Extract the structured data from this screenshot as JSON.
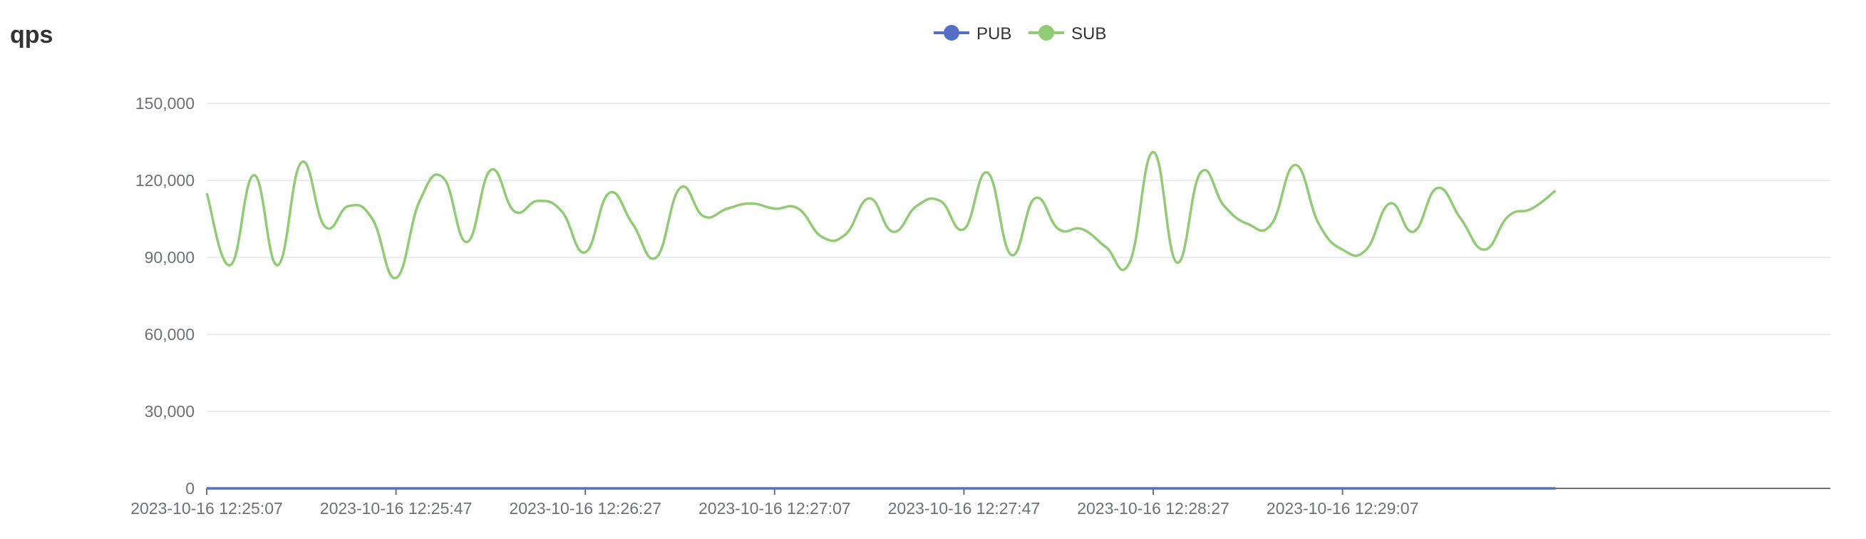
{
  "chart_data": {
    "type": "line",
    "title": "qps",
    "xlabel": "",
    "ylabel": "",
    "ylim": [
      0,
      150000
    ],
    "y_ticks": [
      0,
      30000,
      60000,
      90000,
      120000,
      150000
    ],
    "y_tick_labels": [
      "0",
      "30,000",
      "60,000",
      "90,000",
      "120,000",
      "150,000"
    ],
    "x_tick_labels": [
      "2023-10-16 12:25:07",
      "2023-10-16 12:25:47",
      "2023-10-16 12:26:27",
      "2023-10-16 12:27:07",
      "2023-10-16 12:27:47",
      "2023-10-16 12:28:27",
      "2023-10-16 12:29:07"
    ],
    "grid": true,
    "legend": "top-center",
    "smooth": true,
    "x": [
      "2023-10-16 12:25:07",
      "2023-10-16 12:25:12",
      "2023-10-16 12:25:17",
      "2023-10-16 12:25:22",
      "2023-10-16 12:25:27",
      "2023-10-16 12:25:32",
      "2023-10-16 12:25:37",
      "2023-10-16 12:25:42",
      "2023-10-16 12:25:47",
      "2023-10-16 12:25:52",
      "2023-10-16 12:25:57",
      "2023-10-16 12:26:02",
      "2023-10-16 12:26:07",
      "2023-10-16 12:26:12",
      "2023-10-16 12:26:17",
      "2023-10-16 12:26:22",
      "2023-10-16 12:26:27",
      "2023-10-16 12:26:32",
      "2023-10-16 12:26:37",
      "2023-10-16 12:26:42",
      "2023-10-16 12:26:47",
      "2023-10-16 12:26:52",
      "2023-10-16 12:26:57",
      "2023-10-16 12:27:02",
      "2023-10-16 12:27:07",
      "2023-10-16 12:27:12",
      "2023-10-16 12:27:17",
      "2023-10-16 12:27:22",
      "2023-10-16 12:27:27",
      "2023-10-16 12:27:32",
      "2023-10-16 12:27:37",
      "2023-10-16 12:27:42",
      "2023-10-16 12:27:47",
      "2023-10-16 12:27:52",
      "2023-10-16 12:27:57",
      "2023-10-16 12:28:02",
      "2023-10-16 12:28:07",
      "2023-10-16 12:28:12",
      "2023-10-16 12:28:17",
      "2023-10-16 12:28:22",
      "2023-10-16 12:28:27",
      "2023-10-16 12:28:32",
      "2023-10-16 12:28:37",
      "2023-10-16 12:28:42",
      "2023-10-16 12:28:47",
      "2023-10-16 12:28:52",
      "2023-10-16 12:28:57",
      "2023-10-16 12:29:02",
      "2023-10-16 12:29:07",
      "2023-10-16 12:29:12",
      "2023-10-16 12:29:17",
      "2023-10-16 12:29:22",
      "2023-10-16 12:29:27",
      "2023-10-16 12:29:32",
      "2023-10-16 12:29:37",
      "2023-10-16 12:29:42",
      "2023-10-16 12:29:47",
      "2023-10-16 12:29:52"
    ],
    "series": [
      {
        "name": "PUB",
        "color": "#5470c6",
        "values": [
          0,
          0,
          0,
          0,
          0,
          0,
          0,
          0,
          0,
          0,
          0,
          0,
          0,
          0,
          0,
          0,
          0,
          0,
          0,
          0,
          0,
          0,
          0,
          0,
          0,
          0,
          0,
          0,
          0,
          0,
          0,
          0,
          0,
          0,
          0,
          0,
          0,
          0,
          0,
          0,
          0,
          0,
          0,
          0,
          0,
          0,
          0,
          0,
          0,
          0,
          0,
          0,
          0,
          0,
          0,
          0,
          0,
          0
        ]
      },
      {
        "name": "SUB",
        "color": "#91cc75",
        "values": [
          115000,
          87000,
          122000,
          87000,
          127000,
          102000,
          110000,
          105000,
          82000,
          112000,
          121000,
          96000,
          124000,
          108000,
          112000,
          108000,
          92000,
          115000,
          103000,
          90000,
          117000,
          106000,
          109000,
          111000,
          109000,
          109000,
          98000,
          99000,
          113000,
          100000,
          110000,
          112000,
          101000,
          123000,
          91000,
          113000,
          101000,
          101000,
          94000,
          88000,
          131000,
          88000,
          123000,
          110000,
          103000,
          103000,
          126000,
          103000,
          93000,
          93000,
          111000,
          100000,
          117000,
          105000,
          93000,
          106000,
          109000,
          116000
        ]
      }
    ]
  }
}
